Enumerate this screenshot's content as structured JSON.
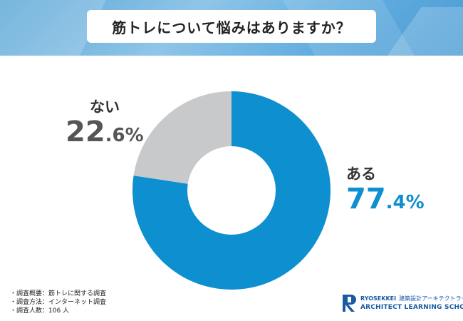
{
  "title": "筋トレについて悩みはありますか？",
  "chart_data": {
    "type": "pie",
    "donut": true,
    "categories": [
      "ある",
      "ない"
    ],
    "values": [
      77.4,
      22.6
    ],
    "value_labels": [
      {
        "main": "77",
        "decimal": ".4%"
      },
      {
        "main": "22",
        "decimal": ".6%"
      }
    ],
    "colors": [
      "#0e8fcf",
      "#c8c9ca"
    ],
    "label_colors": [
      "#0e8fcf",
      "#555555"
    ]
  },
  "notes": [
    "・調査概要：筋トレに関する調査",
    "・調査方法：インターネット調査",
    "・調査人数：106 人"
  ],
  "logo": {
    "line1_en": "RYOSEKKEI",
    "line1_jp": "建築設計アーキテクトラーニング",
    "line2": "ARCHITECT LEARNING SCHOOL",
    "brand_color": "#1a5aa5"
  }
}
